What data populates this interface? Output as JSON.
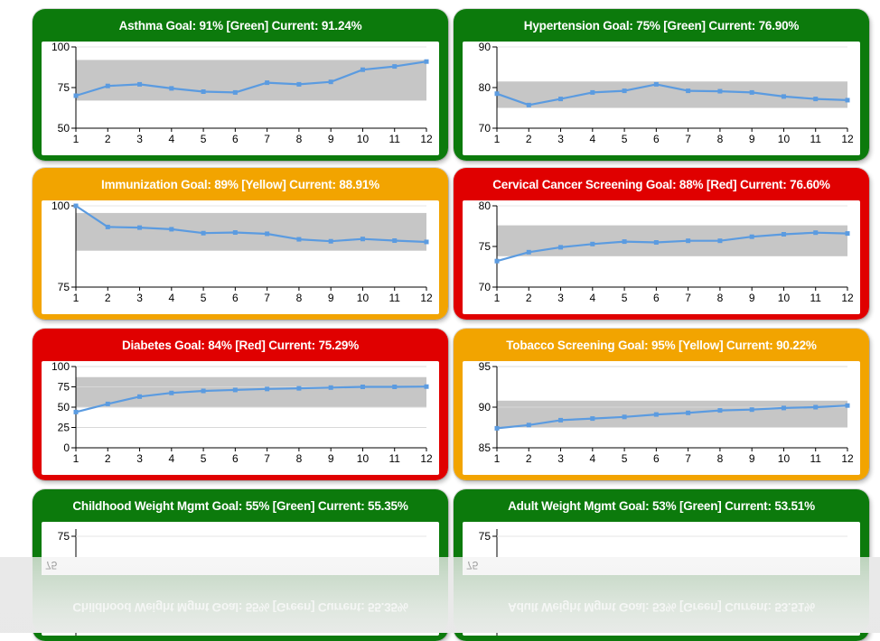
{
  "colors": {
    "green": "#0c7a0c",
    "yellow": "#f2a400",
    "red": "#e00000",
    "goal_band": "#c6c6c6",
    "series_line": "#5b9be0"
  },
  "chart_data": [
    {
      "type": "line",
      "title": "Asthma Goal: 91% [Green] Current: 91.24%",
      "status": "green",
      "categories": [
        1,
        2,
        3,
        4,
        5,
        6,
        7,
        8,
        9,
        10,
        11,
        12
      ],
      "values": [
        70,
        76,
        77,
        74.5,
        72.5,
        72,
        78,
        77,
        78.5,
        86,
        88,
        91
      ],
      "ylim": [
        50,
        100
      ],
      "yticks": [
        50,
        75,
        100
      ],
      "goal_band": [
        67,
        92
      ],
      "grid": false
    },
    {
      "type": "line",
      "title": "Hypertension Goal: 75% [Green] Current: 76.90%",
      "status": "green",
      "categories": [
        1,
        2,
        3,
        4,
        5,
        6,
        7,
        8,
        9,
        10,
        11,
        12
      ],
      "values": [
        78.5,
        75.7,
        77.2,
        78.8,
        79.2,
        80.8,
        79.2,
        79.1,
        78.8,
        77.8,
        77.2,
        76.9
      ],
      "ylim": [
        70,
        90
      ],
      "yticks": [
        70,
        80,
        90
      ],
      "goal_band": [
        75,
        81.5
      ],
      "grid": false
    },
    {
      "type": "line",
      "title": "Immunization Goal: 89% [Yellow] Current: 88.91%",
      "status": "yellow",
      "categories": [
        1,
        2,
        3,
        4,
        5,
        6,
        7,
        8,
        9,
        10,
        11,
        12
      ],
      "values": [
        100,
        93.5,
        93.3,
        92.8,
        91.6,
        91.8,
        91.4,
        89.7,
        89.1,
        89.8,
        89.3,
        88.9
      ],
      "ylim": [
        75,
        100
      ],
      "yticks": [
        75,
        100
      ],
      "goal_band": [
        86.2,
        97.8
      ],
      "grid": false
    },
    {
      "type": "line",
      "title": "Cervical Cancer Screening Goal: 88% [Red] Current: 76.60%",
      "status": "red",
      "categories": [
        1,
        2,
        3,
        4,
        5,
        6,
        7,
        8,
        9,
        10,
        11,
        12
      ],
      "values": [
        73.2,
        74.3,
        74.9,
        75.3,
        75.6,
        75.5,
        75.7,
        75.7,
        76.2,
        76.5,
        76.7,
        76.6
      ],
      "ylim": [
        70,
        80
      ],
      "yticks": [
        70,
        75,
        80
      ],
      "goal_band": [
        73.8,
        77.6
      ],
      "grid": false
    },
    {
      "type": "line",
      "title": "Diabetes Goal: 84% [Red] Current: 75.29%",
      "status": "red",
      "categories": [
        1,
        2,
        3,
        4,
        5,
        6,
        7,
        8,
        9,
        10,
        11,
        12
      ],
      "values": [
        44,
        54,
        63,
        67.5,
        70,
        71.2,
        72.4,
        73.2,
        74.1,
        75,
        75,
        75.3
      ],
      "ylim": [
        0,
        100
      ],
      "yticks": [
        0,
        25,
        50,
        75,
        100
      ],
      "goal_band": [
        50,
        87
      ],
      "grid": true
    },
    {
      "type": "line",
      "title": "Tobacco Screening Goal: 95% [Yellow] Current: 90.22%",
      "status": "yellow",
      "categories": [
        1,
        2,
        3,
        4,
        5,
        6,
        7,
        8,
        9,
        10,
        11,
        12
      ],
      "values": [
        87.4,
        87.8,
        88.4,
        88.6,
        88.8,
        89.1,
        89.3,
        89.6,
        89.7,
        89.9,
        90,
        90.2
      ],
      "ylim": [
        85,
        95
      ],
      "yticks": [
        85,
        90,
        95
      ],
      "goal_band": [
        87.5,
        90.8
      ],
      "grid": true
    },
    {
      "type": "line",
      "title": "Childhood Weight Mgmt Goal: 55% [Green] Current: 55.35%",
      "status": "green",
      "categories": [],
      "values": [],
      "ylim": [],
      "yticks": [
        75
      ],
      "visible_tick_labels": [
        "75"
      ],
      "grid": false
    },
    {
      "type": "line",
      "title": "Adult Weight Mgmt Goal: 53% [Green] Current: 53.51%",
      "status": "green",
      "categories": [],
      "values": [],
      "ylim": [],
      "yticks": [
        75
      ],
      "visible_tick_labels": [
        "75"
      ],
      "grid": false
    }
  ]
}
